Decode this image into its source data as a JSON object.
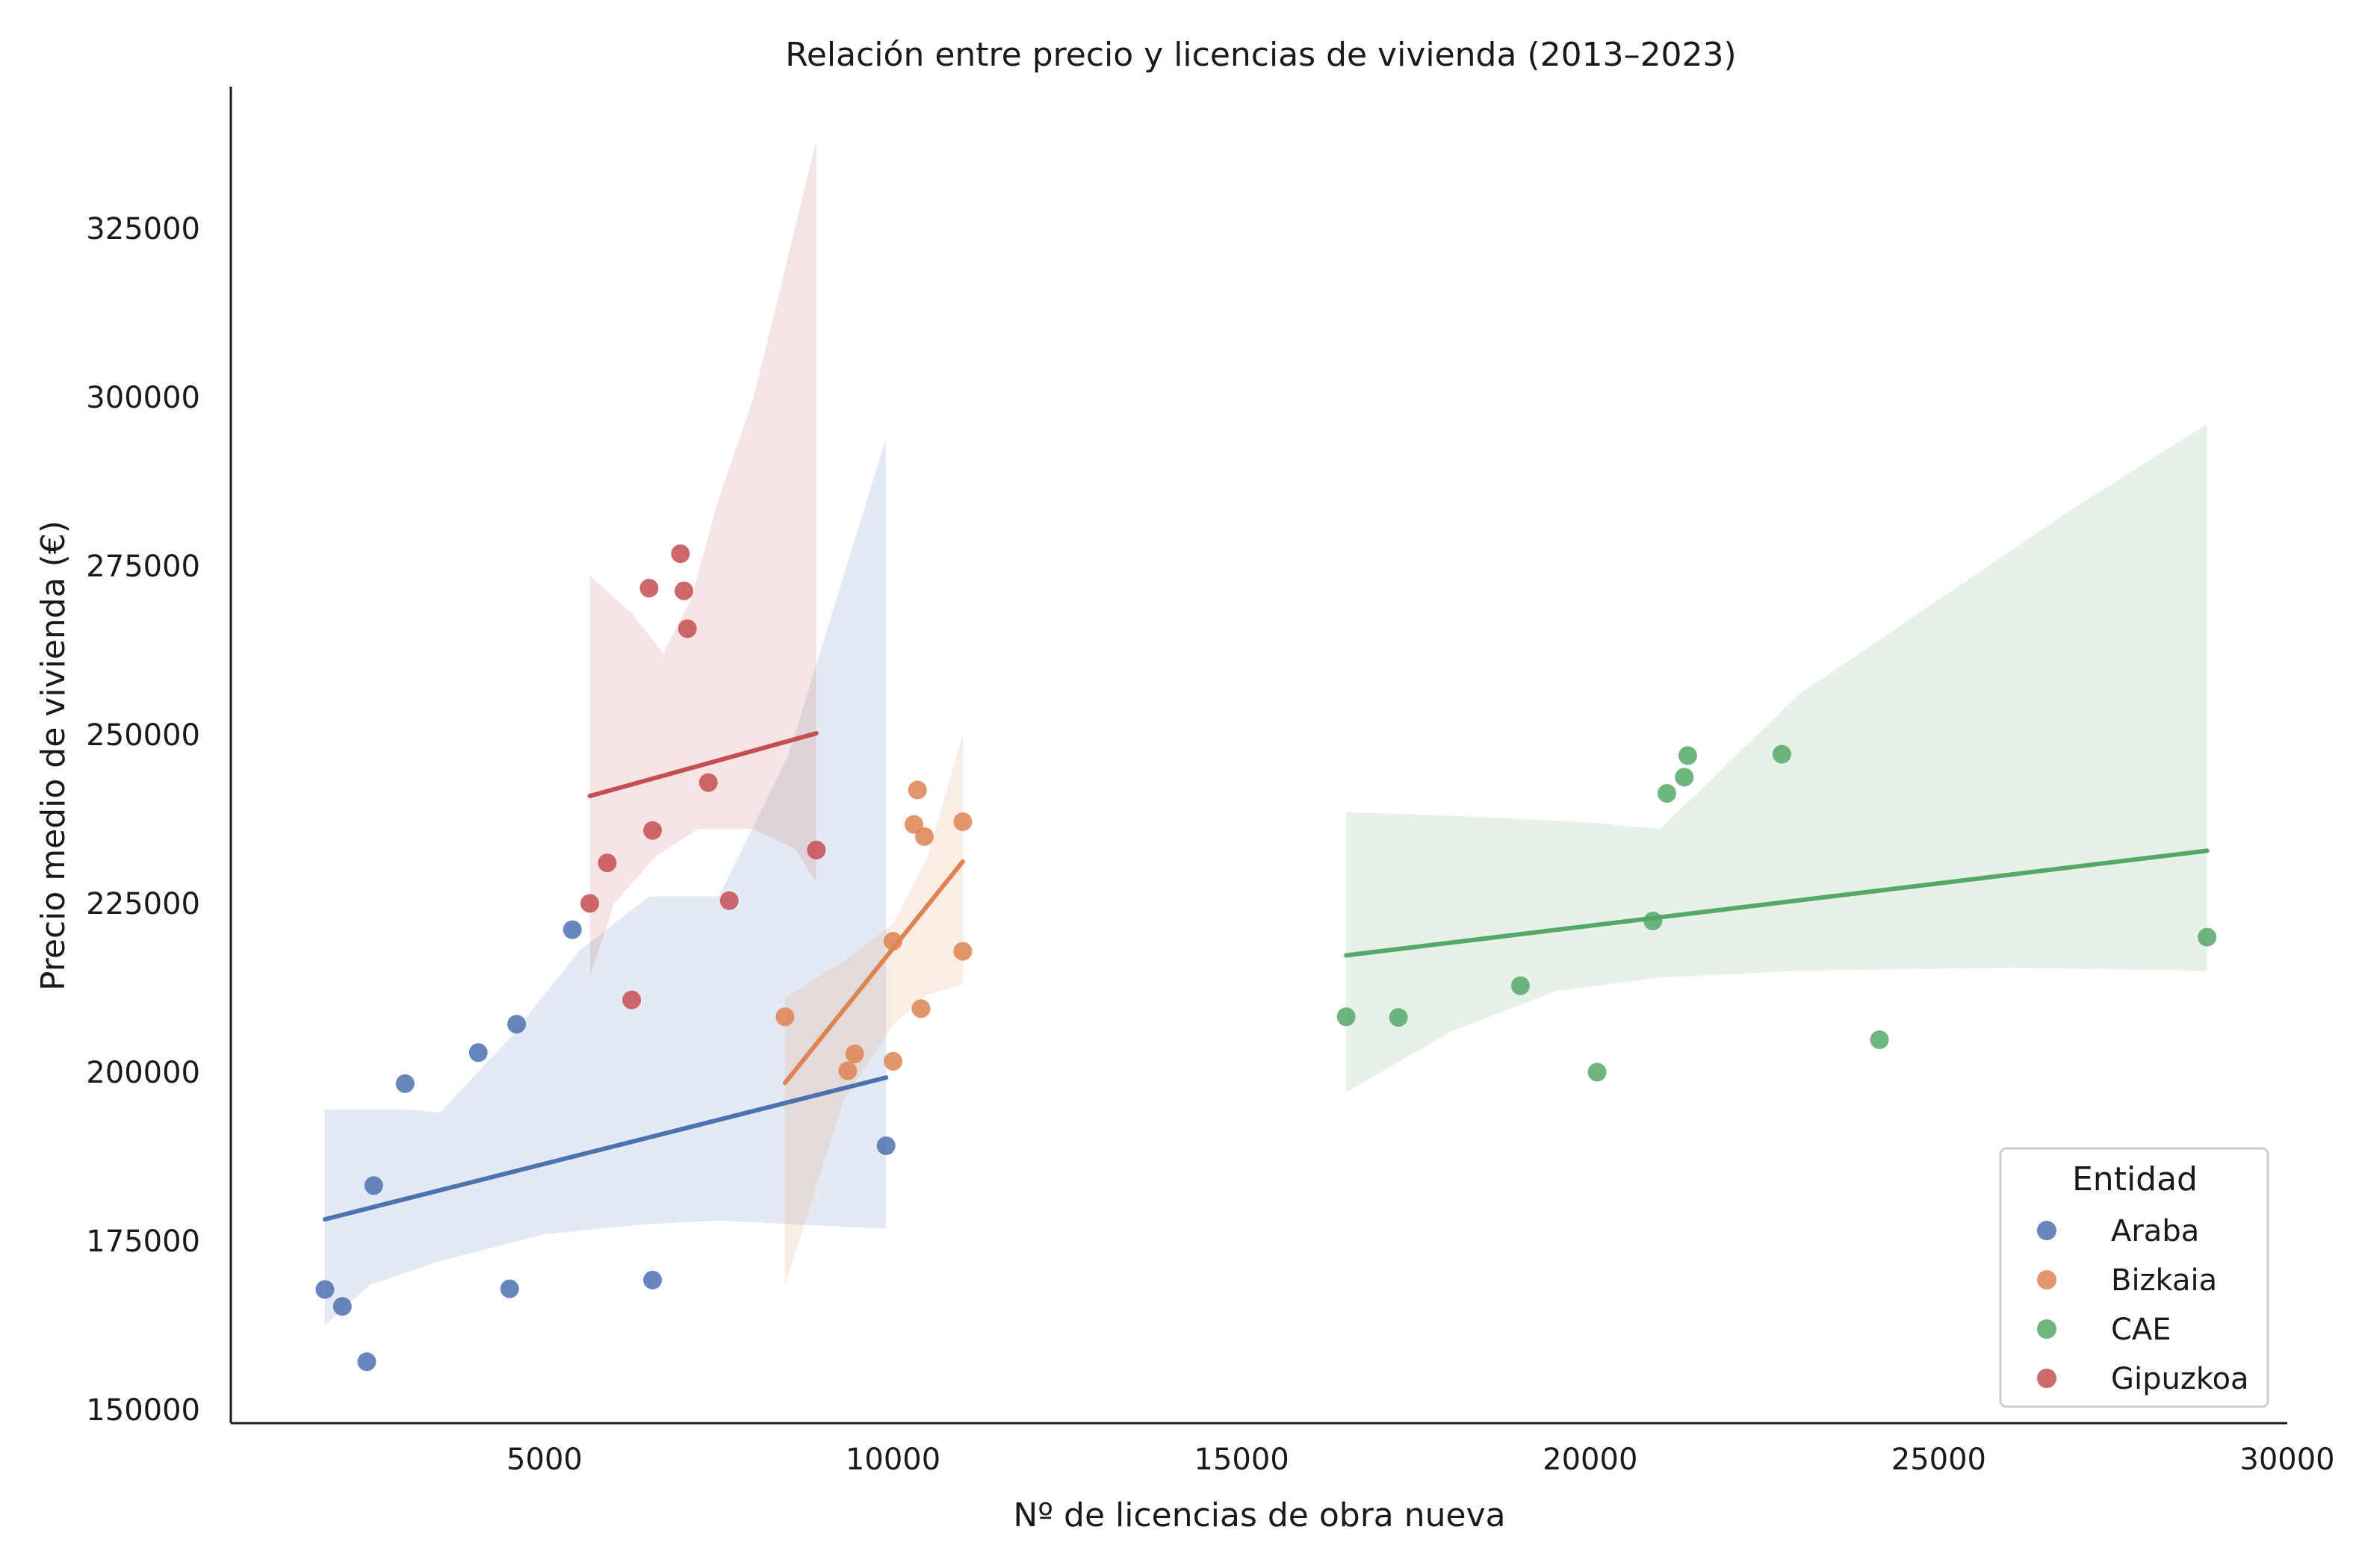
{
  "chart_data": {
    "type": "scatter",
    "title": "Relación entre precio y licencias de vivienda (2013–2023)",
    "xlabel": "Nº de licencias de obra nueva",
    "ylabel": "Precio medio de vivienda (€)",
    "xlim": [
      500,
      30000
    ],
    "ylim": [
      148000,
      346000
    ],
    "xticks": [
      5000,
      10000,
      15000,
      20000,
      25000,
      30000
    ],
    "yticks": [
      150000,
      175000,
      200000,
      225000,
      250000,
      275000,
      300000,
      325000
    ],
    "xtick_labels": [
      "5000",
      "10000",
      "15000",
      "20000",
      "25000",
      "30000"
    ],
    "ytick_labels": [
      "150000",
      "175000",
      "200000",
      "225000",
      "250000",
      "275000",
      "300000",
      "325000"
    ],
    "grid": false,
    "legend": {
      "title": "Entidad",
      "position": "lower-right",
      "entries": [
        "Araba",
        "Bizkaia",
        "CAE",
        "Gipuzkoa"
      ]
    },
    "series": [
      {
        "name": "Araba",
        "color": "#4c72b0",
        "points": [
          {
            "x": 1850,
            "y": 167800
          },
          {
            "x": 2100,
            "y": 165300
          },
          {
            "x": 2450,
            "y": 157100
          },
          {
            "x": 2550,
            "y": 183200
          },
          {
            "x": 3000,
            "y": 198300
          },
          {
            "x": 4050,
            "y": 202900
          },
          {
            "x": 4500,
            "y": 167900
          },
          {
            "x": 4600,
            "y": 207100
          },
          {
            "x": 5400,
            "y": 221100
          },
          {
            "x": 6550,
            "y": 169200
          },
          {
            "x": 9900,
            "y": 189100
          }
        ],
        "fit": [
          {
            "x": 1850,
            "y": 178200
          },
          {
            "x": 9900,
            "y": 199200
          }
        ],
        "ci_upper": [
          {
            "x": 1850,
            "y": 194500
          },
          {
            "x": 3000,
            "y": 194500
          },
          {
            "x": 3500,
            "y": 194000
          },
          {
            "x": 4500,
            "y": 205000
          },
          {
            "x": 5500,
            "y": 218000
          },
          {
            "x": 6500,
            "y": 226000
          },
          {
            "x": 7500,
            "y": 226000
          },
          {
            "x": 8500,
            "y": 247000
          },
          {
            "x": 9900,
            "y": 294000
          }
        ],
        "ci_lower": [
          {
            "x": 1850,
            "y": 162500
          },
          {
            "x": 2500,
            "y": 168500
          },
          {
            "x": 3500,
            "y": 172000
          },
          {
            "x": 5000,
            "y": 176000
          },
          {
            "x": 6500,
            "y": 177500
          },
          {
            "x": 7500,
            "y": 178000
          },
          {
            "x": 8500,
            "y": 177500
          },
          {
            "x": 9900,
            "y": 176800
          }
        ]
      },
      {
        "name": "Bizkaia",
        "color": "#dd8452",
        "points": [
          {
            "x": 8450,
            "y": 208200
          },
          {
            "x": 9350,
            "y": 200200
          },
          {
            "x": 9450,
            "y": 202700
          },
          {
            "x": 10000,
            "y": 201600
          },
          {
            "x": 10000,
            "y": 219400
          },
          {
            "x": 10300,
            "y": 236700
          },
          {
            "x": 10350,
            "y": 241800
          },
          {
            "x": 10400,
            "y": 209400
          },
          {
            "x": 10450,
            "y": 234900
          },
          {
            "x": 11000,
            "y": 217900
          },
          {
            "x": 11000,
            "y": 237100
          }
        ],
        "fit": [
          {
            "x": 8450,
            "y": 198400
          },
          {
            "x": 11000,
            "y": 231200
          }
        ],
        "ci_upper": [
          {
            "x": 8450,
            "y": 211000
          },
          {
            "x": 9300,
            "y": 216500
          },
          {
            "x": 10000,
            "y": 222000
          },
          {
            "x": 10500,
            "y": 232000
          },
          {
            "x": 11000,
            "y": 250000
          }
        ],
        "ci_lower": [
          {
            "x": 8450,
            "y": 168500
          },
          {
            "x": 9300,
            "y": 196000
          },
          {
            "x": 10000,
            "y": 207000
          },
          {
            "x": 10500,
            "y": 211500
          },
          {
            "x": 11000,
            "y": 213000
          }
        ]
      },
      {
        "name": "CAE",
        "color": "#55a868",
        "points": [
          {
            "x": 16500,
            "y": 208200
          },
          {
            "x": 17250,
            "y": 208100
          },
          {
            "x": 19000,
            "y": 212800
          },
          {
            "x": 20100,
            "y": 200000
          },
          {
            "x": 20900,
            "y": 222400
          },
          {
            "x": 21100,
            "y": 241300
          },
          {
            "x": 21350,
            "y": 243700
          },
          {
            "x": 21400,
            "y": 246900
          },
          {
            "x": 22750,
            "y": 247100
          },
          {
            "x": 24150,
            "y": 204800
          },
          {
            "x": 28850,
            "y": 220000
          }
        ],
        "fit": [
          {
            "x": 16500,
            "y": 217300
          },
          {
            "x": 28850,
            "y": 232800
          }
        ],
        "ci_upper": [
          {
            "x": 16500,
            "y": 238500
          },
          {
            "x": 18000,
            "y": 238000
          },
          {
            "x": 20000,
            "y": 237000
          },
          {
            "x": 21000,
            "y": 236000
          },
          {
            "x": 22000,
            "y": 246000
          },
          {
            "x": 23000,
            "y": 256000
          },
          {
            "x": 25000,
            "y": 270000
          },
          {
            "x": 27000,
            "y": 284000
          },
          {
            "x": 28850,
            "y": 296000
          }
        ],
        "ci_lower": [
          {
            "x": 16500,
            "y": 197000
          },
          {
            "x": 18000,
            "y": 206000
          },
          {
            "x": 19500,
            "y": 212000
          },
          {
            "x": 21000,
            "y": 214000
          },
          {
            "x": 23000,
            "y": 215000
          },
          {
            "x": 26000,
            "y": 215500
          },
          {
            "x": 28850,
            "y": 215000
          }
        ]
      },
      {
        "name": "Gipuzkoa",
        "color": "#c44e52",
        "points": [
          {
            "x": 5650,
            "y": 225000
          },
          {
            "x": 5900,
            "y": 231000
          },
          {
            "x": 6250,
            "y": 210700
          },
          {
            "x": 6500,
            "y": 271700
          },
          {
            "x": 6550,
            "y": 235800
          },
          {
            "x": 6950,
            "y": 276800
          },
          {
            "x": 7000,
            "y": 271300
          },
          {
            "x": 7050,
            "y": 265700
          },
          {
            "x": 7350,
            "y": 242900
          },
          {
            "x": 7650,
            "y": 225400
          },
          {
            "x": 8900,
            "y": 232900
          }
        ],
        "fit": [
          {
            "x": 5650,
            "y": 240900
          },
          {
            "x": 8900,
            "y": 250200
          }
        ],
        "ci_upper": [
          {
            "x": 5650,
            "y": 273500
          },
          {
            "x": 6250,
            "y": 268000
          },
          {
            "x": 6700,
            "y": 262000
          },
          {
            "x": 7100,
            "y": 270000
          },
          {
            "x": 7500,
            "y": 285000
          },
          {
            "x": 8000,
            "y": 300000
          },
          {
            "x": 8900,
            "y": 338000
          }
        ],
        "ci_lower": [
          {
            "x": 5650,
            "y": 214000
          },
          {
            "x": 6000,
            "y": 225000
          },
          {
            "x": 6600,
            "y": 232000
          },
          {
            "x": 7200,
            "y": 236000
          },
          {
            "x": 8000,
            "y": 236000
          },
          {
            "x": 8600,
            "y": 233000
          },
          {
            "x": 8900,
            "y": 228000
          }
        ]
      }
    ]
  }
}
